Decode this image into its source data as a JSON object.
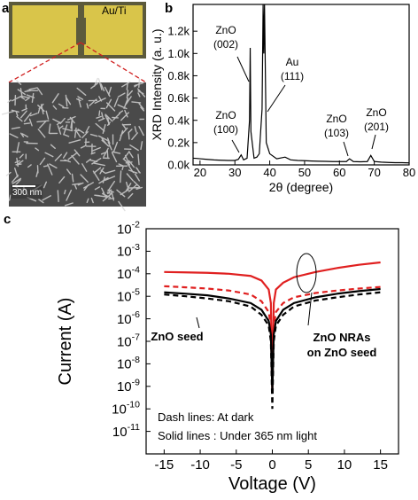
{
  "figure": {
    "panel_a": {
      "label": "a",
      "photo_label": "Au/Ti",
      "scale_bar": "300 nm"
    }
  },
  "chart_data": [
    {
      "type": "line",
      "panel_label": "b",
      "x_label": "2θ (degree)",
      "y_label": "XRD Intensity (a. u.)",
      "x": [
        18,
        19,
        20,
        22,
        24,
        26,
        28,
        30,
        31,
        31.8,
        32.5,
        33.5,
        34.2,
        34.4,
        34.6,
        35.5,
        36.3,
        37,
        37.8,
        38.1,
        38.3,
        38.5,
        39,
        40,
        42,
        44.4,
        46,
        48,
        50,
        52,
        54,
        56,
        58,
        60,
        62,
        62.9,
        64,
        66,
        68,
        69,
        70,
        72,
        74,
        76,
        78,
        80
      ],
      "series": [
        {
          "color": "#000000",
          "values": [
            60,
            58,
            55,
            50,
            45,
            42,
            40,
            40,
            50,
            90,
            45,
            60,
            400,
            1050,
            300,
            60,
            70,
            100,
            500,
            1440,
            1000,
            1440,
            200,
            100,
            55,
            70,
            45,
            40,
            38,
            35,
            33,
            32,
            30,
            30,
            30,
            55,
            30,
            28,
            30,
            85,
            30,
            25,
            22,
            20,
            20,
            18
          ]
        }
      ],
      "xlim": [
        18,
        80
      ],
      "xticks": [
        20,
        30,
        40,
        50,
        60,
        70,
        80
      ],
      "ylim": [
        0,
        1440
      ],
      "yticks": [
        {
          "value": 0,
          "label": "0.0k"
        },
        {
          "value": 200,
          "label": "0.2k"
        },
        {
          "value": 400,
          "label": "0.4k"
        },
        {
          "value": 600,
          "label": "0.6k"
        },
        {
          "value": 800,
          "label": "0.8k"
        },
        {
          "value": 1000,
          "label": "1.0k"
        },
        {
          "value": 1200,
          "label": "1.2k"
        }
      ],
      "annotations": [
        {
          "lines": [
            "ZnO",
            "(002)"
          ]
        },
        {
          "lines": [
            "Au",
            "(111)"
          ]
        },
        {
          "lines": [
            "ZnO",
            "(100)"
          ]
        },
        {
          "lines": [
            "ZnO",
            "(103)"
          ]
        },
        {
          "lines": [
            "ZnO",
            "(201)"
          ]
        }
      ]
    },
    {
      "type": "line",
      "panel_label": "c",
      "x_label": "Voltage (V)",
      "y_label": "Current (A)",
      "log_y": true,
      "x": [
        -15,
        -12,
        -9,
        -6,
        -3,
        -1.5,
        -0.5,
        -0.2,
        0,
        0.2,
        0.5,
        1.5,
        3,
        6,
        9,
        12,
        15
      ],
      "series": [
        {
          "color": "#e02020",
          "dash": false,
          "values": [
            0.00012,
            0.000115,
            0.00011,
            0.0001,
            8e-05,
            5e-05,
            2e-05,
            5e-06,
            1e-09,
            5e-06,
            2e-05,
            4e-05,
            7e-05,
            0.00012,
            0.00018,
            0.00025,
            0.00032
          ]
        },
        {
          "color": "#e02020",
          "dash": true,
          "values": [
            2.8e-05,
            2.5e-05,
            2.2e-05,
            1.8e-05,
            1.2e-05,
            6e-06,
            2e-06,
            5e-07,
            5e-10,
            5e-07,
            2e-06,
            5e-06,
            9e-06,
            1.4e-05,
            1.8e-05,
            2.2e-05,
            2.6e-05
          ]
        },
        {
          "color": "#000000",
          "dash": false,
          "values": [
            1.5e-05,
            1.3e-05,
            1.1e-05,
            8e-06,
            5e-06,
            2.5e-06,
            8e-07,
            2e-07,
            5e-10,
            2e-07,
            8e-07,
            2.5e-06,
            5e-06,
            9e-06,
            1.3e-05,
            1.7e-05,
            2.1e-05
          ]
        },
        {
          "color": "#000000",
          "dash": true,
          "values": [
            1.2e-05,
            1e-05,
            8e-06,
            6e-06,
            3.5e-06,
            1.5e-06,
            5e-07,
            1e-07,
            1e-10,
            1e-07,
            5e-07,
            1.5e-06,
            3.5e-06,
            6.5e-06,
            9e-06,
            1.2e-05,
            1.5e-05
          ]
        }
      ],
      "xlim": [
        -17.5,
        17.5
      ],
      "xticks": [
        -15,
        -10,
        -5,
        0,
        5,
        10,
        15
      ],
      "ylim": [
        1e-12,
        0.01
      ],
      "yticks": [
        {
          "value": 0.01,
          "label": "10-2"
        },
        {
          "value": 0.001,
          "label": "10-3"
        },
        {
          "value": 0.0001,
          "label": "10-4"
        },
        {
          "value": 1e-05,
          "label": "10-5"
        },
        {
          "value": 1e-06,
          "label": "10-6"
        },
        {
          "value": 1e-07,
          "label": "10-7"
        },
        {
          "value": 1e-08,
          "label": "10-8"
        },
        {
          "value": 1e-09,
          "label": "10-9"
        },
        {
          "value": 1e-10,
          "label": "10-10"
        },
        {
          "value": 1e-11,
          "label": "10-11"
        }
      ],
      "annotations": [
        {
          "lines": [
            "ZnO seed"
          ]
        },
        {
          "lines": [
            "ZnO NRAs",
            "on ZnO seed"
          ]
        },
        {
          "lines": [
            "Dash lines: At dark"
          ]
        },
        {
          "lines": [
            "Solid lines : Under 365 nm light"
          ]
        }
      ]
    }
  ]
}
